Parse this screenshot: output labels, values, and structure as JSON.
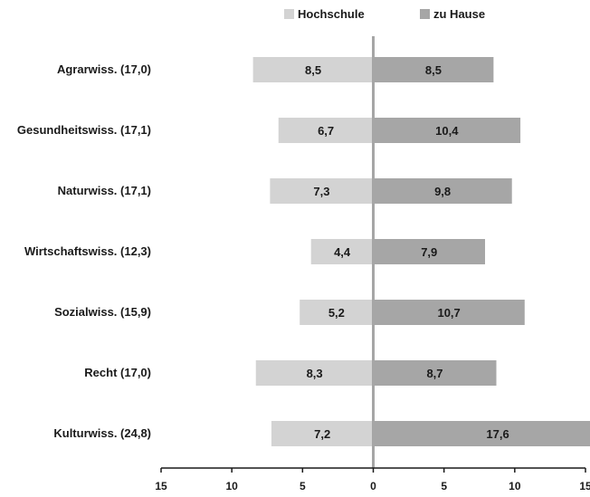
{
  "chart_data": {
    "type": "bar",
    "orientation": "horizontal-diverging",
    "categories": [
      "Agrarwiss. (17,0)",
      "Gesundheitswiss. (17,1)",
      "Naturwiss. (17,1)",
      "Wirtschaftswiss. (12,3)",
      "Sozialwiss. (15,9)",
      "Recht (17,0)",
      "Kulturwiss. (24,8)"
    ],
    "series": [
      {
        "name": "Hochschule",
        "direction": "left",
        "color": "#d3d3d3",
        "values": [
          8.5,
          6.7,
          7.3,
          4.4,
          5.2,
          8.3,
          7.2
        ],
        "labels": [
          "8,5",
          "6,7",
          "7,3",
          "4,4",
          "5,2",
          "8,3",
          "7,2"
        ]
      },
      {
        "name": "zu Hause",
        "direction": "right",
        "color": "#a6a6a6",
        "values": [
          8.5,
          10.4,
          9.8,
          7.9,
          10.7,
          8.7,
          17.6
        ],
        "labels": [
          "8,5",
          "10,4",
          "9,8",
          "7,9",
          "10,7",
          "8,7",
          "17,6"
        ]
      }
    ],
    "xlim": [
      -15,
      15
    ],
    "xticks": [
      {
        "value": -15,
        "label": "15"
      },
      {
        "value": -10,
        "label": "10"
      },
      {
        "value": -5,
        "label": "5"
      },
      {
        "value": 0,
        "label": "0"
      },
      {
        "value": 5,
        "label": "5"
      },
      {
        "value": 10,
        "label": "10"
      },
      {
        "value": 15,
        "label": "15"
      }
    ],
    "legend_position": "top",
    "grid": false,
    "center_line_color": "#a6a6a6",
    "axis_color": "#1a1a1a"
  }
}
